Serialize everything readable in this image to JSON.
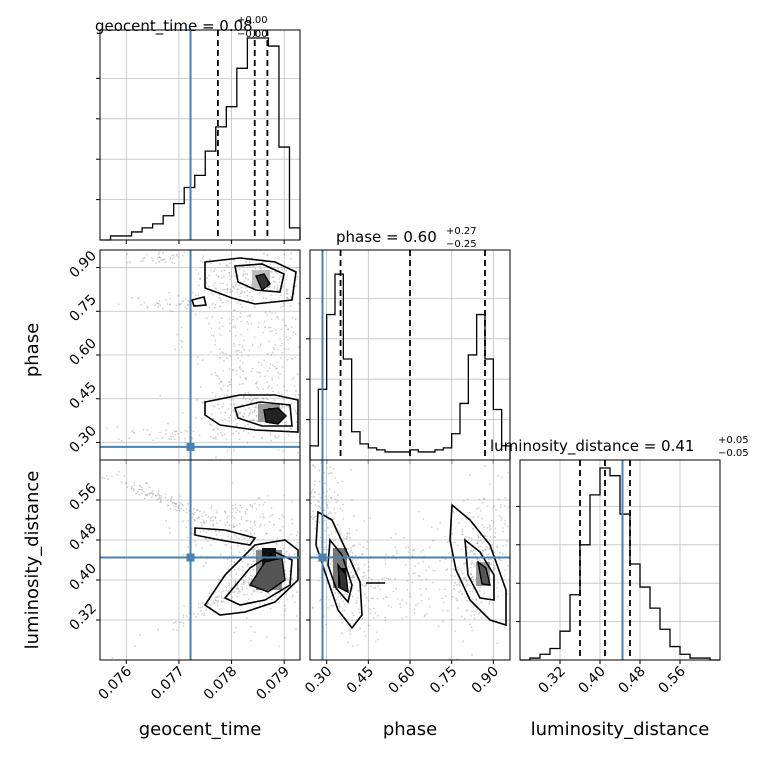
{
  "chart_data": {
    "type": "corner",
    "parameters": [
      "geocent_time",
      "phase",
      "luminosity_distance"
    ],
    "colors": {
      "truth": "#4682b4",
      "hist": "#000000",
      "grid": "#c0c0c0",
      "scatter": "#9a9a9a"
    },
    "panels": {
      "geocent_time_hist": {
        "title": {
          "main": "geocent_time = 0.08",
          "sup": "+0.00",
          "sub": "−0.00"
        },
        "xlim": [
          0.0755,
          0.0793
        ],
        "bins": [
          0.0755,
          0.0757,
          0.0759,
          0.0761,
          0.0763,
          0.0765,
          0.0767,
          0.0769,
          0.0771,
          0.0773,
          0.0775,
          0.0777,
          0.0779,
          0.0781,
          0.0783,
          0.0785,
          0.0787,
          0.0789,
          0.0791,
          0.0793
        ],
        "counts": [
          0,
          0.02,
          0.02,
          0.04,
          0.06,
          0.08,
          0.12,
          0.18,
          0.26,
          0.32,
          0.44,
          0.56,
          0.66,
          0.85,
          1.0,
          1.0,
          0.96,
          0.46,
          0.06
        ],
        "quantiles": [
          0.07774,
          0.07844,
          0.07868
        ],
        "truth": 0.07722,
        "xticks": [
          0.076,
          0.077,
          0.078,
          0.079
        ]
      },
      "phase_hist": {
        "title": {
          "main": "phase = 0.60",
          "sup": "+0.27",
          "sub": "−0.25"
        },
        "xlim": [
          0.24,
          0.96
        ],
        "bins": [
          0.24,
          0.27,
          0.3,
          0.33,
          0.36,
          0.39,
          0.42,
          0.45,
          0.48,
          0.51,
          0.54,
          0.57,
          0.6,
          0.63,
          0.66,
          0.69,
          0.72,
          0.75,
          0.78,
          0.81,
          0.84,
          0.87,
          0.9,
          0.93,
          0.96
        ],
        "counts": [
          0.07,
          0.35,
          0.72,
          0.92,
          0.5,
          0.14,
          0.08,
          0.06,
          0.05,
          0.04,
          0.04,
          0.04,
          0.05,
          0.04,
          0.04,
          0.05,
          0.06,
          0.13,
          0.28,
          0.52,
          0.72,
          0.5,
          0.25,
          0.07
        ],
        "quantiles": [
          0.35,
          0.6,
          0.87
        ],
        "truth": 0.285,
        "xticks": [
          0.3,
          0.45,
          0.6,
          0.75,
          0.9
        ],
        "xtick_labels": [
          "0.30",
          "0.45",
          "0.60",
          "0.75",
          "0.90"
        ]
      },
      "luminosity_distance_hist": {
        "title": {
          "main": "luminosity_distance = 0.41",
          "sup": "+0.05",
          "sub": "−0.05"
        },
        "xlim": [
          0.24,
          0.64
        ],
        "bins": [
          0.24,
          0.26,
          0.28,
          0.3,
          0.32,
          0.34,
          0.36,
          0.38,
          0.4,
          0.42,
          0.44,
          0.46,
          0.48,
          0.5,
          0.52,
          0.54,
          0.56,
          0.58,
          0.6,
          0.62,
          0.64
        ],
        "counts": [
          0,
          0.01,
          0.03,
          0.06,
          0.15,
          0.34,
          0.6,
          0.86,
          1.0,
          0.96,
          0.76,
          0.5,
          0.38,
          0.27,
          0.16,
          0.07,
          0.03,
          0.01,
          0.01,
          0
        ],
        "quantiles": [
          0.36,
          0.41,
          0.46
        ],
        "truth": 0.445,
        "xticks": [
          0.32,
          0.4,
          0.48,
          0.56
        ],
        "xtick_labels": [
          "0.32",
          "0.40",
          "0.48",
          "0.56"
        ]
      },
      "phase_vs_geocent_time": {
        "xlim": [
          0.0755,
          0.0793
        ],
        "ylim": [
          0.24,
          0.96
        ],
        "yticks": [
          0.3,
          0.45,
          0.6,
          0.75,
          0.9
        ],
        "ytick_labels": [
          "0.30",
          "0.45",
          "0.60",
          "0.75",
          "0.90"
        ],
        "truth": [
          0.07722,
          0.285
        ]
      },
      "luminosity_distance_vs_geocent_time": {
        "xlim": [
          0.0755,
          0.0793
        ],
        "ylim": [
          0.24,
          0.64
        ],
        "yticks": [
          0.32,
          0.4,
          0.48,
          0.56
        ],
        "ytick_labels": [
          "0.32",
          "0.40",
          "0.48",
          "0.56"
        ],
        "xticks": [
          0.076,
          0.077,
          0.078,
          0.079
        ],
        "xtick_labels": [
          "0.076",
          "0.077",
          "0.078",
          "0.079"
        ],
        "truth": [
          0.07722,
          0.445
        ]
      },
      "luminosity_distance_vs_phase": {
        "xlim": [
          0.24,
          0.96
        ],
        "ylim": [
          0.24,
          0.64
        ],
        "truth": [
          0.285,
          0.445
        ]
      }
    },
    "axis_labels": {
      "x": [
        "geocent_time",
        "phase",
        "luminosity_distance"
      ],
      "y": [
        "phase",
        "luminosity_distance"
      ]
    }
  }
}
